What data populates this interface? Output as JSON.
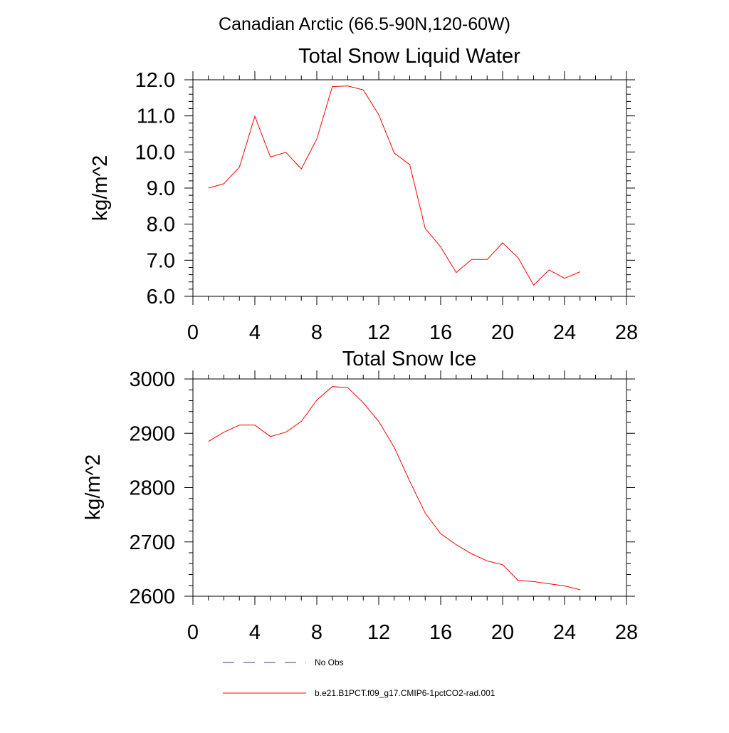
{
  "figure": {
    "title": "Canadian Arctic (66.5-90N,120-60W)"
  },
  "legend": {
    "entries": [
      {
        "label": "No Obs",
        "style": "dashed",
        "color": "#3a3a8c"
      },
      {
        "label": "b.e21.B1PCT.f09_g17.CMIP6-1pctCO2-rad.001",
        "style": "solid",
        "color": "#ff0000"
      }
    ]
  },
  "chart_data": [
    {
      "type": "line",
      "title": "Total Snow Liquid Water",
      "xlabel": "",
      "ylabel": "kg/m^2",
      "xlim": [
        0,
        28
      ],
      "ylim": [
        6.0,
        12.0
      ],
      "x_ticks": [
        0,
        4,
        8,
        12,
        16,
        20,
        24,
        28
      ],
      "y_ticks": [
        6.0,
        7.0,
        8.0,
        9.0,
        10.0,
        11.0,
        12.0
      ],
      "y_tick_labels": [
        "6.0",
        "7.0",
        "8.0",
        "9.0",
        "10.0",
        "11.0",
        "12.0"
      ],
      "grid": false,
      "series": [
        {
          "name": "b.e21.B1PCT.f09_g17.CMIP6-1pctCO2-rad.001",
          "color": "#ff0000",
          "x": [
            1,
            2,
            3,
            4,
            5,
            6,
            7,
            8,
            9,
            10,
            11,
            12,
            13,
            14,
            15,
            16,
            17,
            18,
            19,
            20,
            21,
            22,
            23,
            24,
            25
          ],
          "values": [
            9.0,
            9.12,
            9.58,
            10.99,
            9.86,
            9.99,
            9.53,
            10.36,
            11.81,
            11.83,
            11.72,
            11.03,
            9.97,
            9.65,
            7.88,
            7.37,
            6.66,
            7.02,
            7.02,
            7.48,
            7.07,
            6.31,
            6.73,
            6.5,
            6.68
          ]
        }
      ]
    },
    {
      "type": "line",
      "title": "Total Snow Ice",
      "xlabel": "",
      "ylabel": "kg/m^2",
      "xlim": [
        0,
        28
      ],
      "ylim": [
        2600,
        3000
      ],
      "x_ticks": [
        0,
        4,
        8,
        12,
        16,
        20,
        24,
        28
      ],
      "y_ticks": [
        2600,
        2700,
        2800,
        2900,
        3000
      ],
      "y_tick_labels": [
        "2600",
        "2700",
        "2800",
        "2900",
        "3000"
      ],
      "grid": false,
      "series": [
        {
          "name": "b.e21.B1PCT.f09_g17.CMIP6-1pctCO2-rad.001",
          "color": "#ff0000",
          "x": [
            1,
            2,
            3,
            4,
            5,
            6,
            7,
            8,
            9,
            10,
            11,
            12,
            13,
            14,
            15,
            16,
            17,
            18,
            19,
            20,
            21,
            22,
            23,
            24,
            25
          ],
          "values": [
            2885,
            2902,
            2915,
            2915,
            2894,
            2902,
            2922,
            2961,
            2986,
            2984,
            2956,
            2922,
            2874,
            2812,
            2753,
            2715,
            2695,
            2678,
            2665,
            2658,
            2629,
            2627,
            2623,
            2619,
            2612
          ]
        }
      ]
    }
  ]
}
